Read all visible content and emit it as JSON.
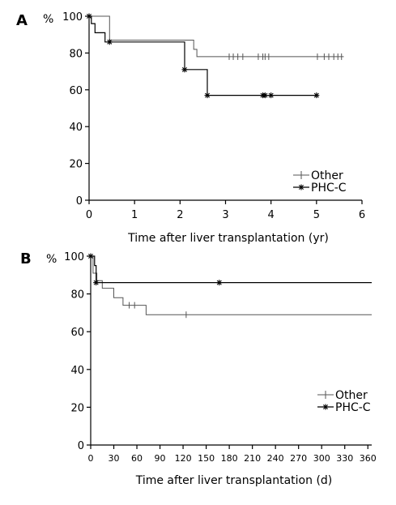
{
  "chart_data": [
    {
      "type": "line",
      "panel_label": "A",
      "y_unit_label": "%",
      "xlabel": "Time after liver transplantation (yr)",
      "ylabel": "",
      "xlim": [
        0,
        6
      ],
      "ylim": [
        0,
        100
      ],
      "x_ticks": [
        0,
        1,
        2,
        3,
        4,
        5,
        6
      ],
      "y_ticks": [
        0,
        20,
        40,
        60,
        80,
        100
      ],
      "legend_position": "bottom-right",
      "series": [
        {
          "name": "Other",
          "style": "step",
          "marker": "plus",
          "color": "#555555",
          "steps": [
            [
              0,
              100
            ],
            [
              0.45,
              100
            ],
            [
              0.45,
              87
            ],
            [
              2.3,
              87
            ],
            [
              2.3,
              82
            ],
            [
              2.37,
              82
            ],
            [
              2.37,
              78
            ],
            [
              5.6,
              78
            ]
          ],
          "censored": [
            [
              3.08,
              78
            ],
            [
              3.17,
              78
            ],
            [
              3.27,
              78
            ],
            [
              3.38,
              78
            ],
            [
              3.72,
              78
            ],
            [
              3.82,
              78
            ],
            [
              3.87,
              78
            ],
            [
              3.95,
              78
            ],
            [
              5.02,
              78
            ],
            [
              5.17,
              78
            ],
            [
              5.27,
              78
            ],
            [
              5.38,
              78
            ],
            [
              5.47,
              78
            ],
            [
              5.55,
              78
            ]
          ]
        },
        {
          "name": "PHC-C",
          "style": "step",
          "marker": "asterisk",
          "color": "#000000",
          "steps": [
            [
              0,
              100
            ],
            [
              0.05,
              100
            ],
            [
              0.05,
              96
            ],
            [
              0.13,
              96
            ],
            [
              0.13,
              91
            ],
            [
              0.35,
              91
            ],
            [
              0.35,
              86
            ],
            [
              2.1,
              86
            ],
            [
              2.1,
              71
            ],
            [
              2.6,
              71
            ],
            [
              2.6,
              57
            ],
            [
              5.0,
              57
            ]
          ],
          "event_points": [
            [
              0,
              100
            ],
            [
              0.45,
              86
            ],
            [
              2.1,
              71
            ],
            [
              2.6,
              57
            ]
          ],
          "censored": [
            [
              3.82,
              57
            ],
            [
              3.87,
              57
            ],
            [
              4.0,
              57
            ],
            [
              5.0,
              57
            ]
          ]
        }
      ]
    },
    {
      "type": "line",
      "panel_label": "B",
      "y_unit_label": "%",
      "xlabel": "Time after liver transplantation (d)",
      "ylabel": "",
      "xlim": [
        0,
        365
      ],
      "ylim": [
        0,
        100
      ],
      "x_ticks": [
        0,
        30,
        60,
        90,
        120,
        150,
        180,
        210,
        240,
        270,
        300,
        330,
        360
      ],
      "y_ticks": [
        0,
        20,
        40,
        60,
        80,
        100
      ],
      "legend_position": "bottom-right",
      "series": [
        {
          "name": "Other",
          "style": "step",
          "marker": "plus",
          "color": "#555555",
          "steps": [
            [
              0,
              100
            ],
            [
              3,
              100
            ],
            [
              3,
              91
            ],
            [
              8,
              91
            ],
            [
              8,
              87
            ],
            [
              15,
              87
            ],
            [
              15,
              83
            ],
            [
              30,
              83
            ],
            [
              30,
              78
            ],
            [
              42,
              78
            ],
            [
              42,
              74
            ],
            [
              72,
              74
            ],
            [
              72,
              69
            ],
            [
              365,
              69
            ]
          ],
          "censored": [
            [
              50,
              74
            ],
            [
              57,
              74
            ],
            [
              124,
              69
            ]
          ]
        },
        {
          "name": "PHC-C",
          "style": "step",
          "marker": "asterisk",
          "color": "#000000",
          "steps": [
            [
              0,
              100
            ],
            [
              5,
              100
            ],
            [
              5,
              95
            ],
            [
              7,
              95
            ],
            [
              7,
              86
            ],
            [
              365,
              86
            ]
          ],
          "event_points": [
            [
              0,
              100
            ],
            [
              7,
              86
            ],
            [
              167,
              86
            ]
          ],
          "censored": []
        }
      ]
    }
  ]
}
